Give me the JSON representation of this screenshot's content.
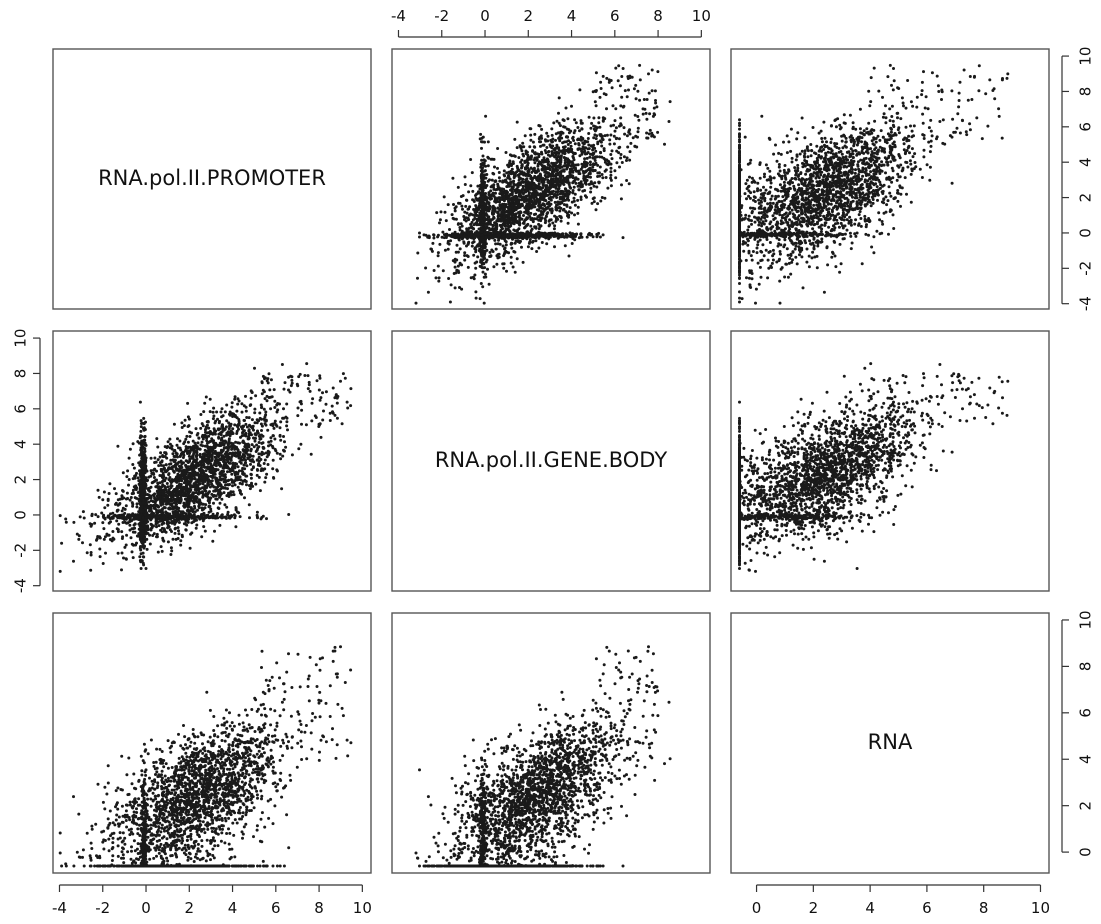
{
  "chart_data": {
    "type": "scatter",
    "matrix": true,
    "variables": [
      "RNA.pol.II.PROMOTER",
      "RNA.pol.II.GENE.BODY",
      "RNA"
    ],
    "axis_ticks": {
      "RNA.pol.II.PROMOTER": [
        -4,
        -2,
        0,
        2,
        4,
        6,
        8,
        10
      ],
      "RNA.pol.II.GENE.BODY": [
        -4,
        -2,
        0,
        2,
        4,
        6,
        8,
        10
      ],
      "RNA": [
        0,
        2,
        4,
        6,
        8,
        10
      ]
    },
    "axis_ranges": {
      "RNA.pol.II.PROMOTER": [
        -4.3,
        10.4
      ],
      "RNA.pol.II.GENE.BODY": [
        -4.3,
        10.4
      ],
      "RNA": [
        -0.9,
        10.3
      ]
    },
    "point_color": "#1a1a1a",
    "frame_color": "#555555",
    "grid": false,
    "n_points_approx": 3000,
    "notes": "pairs() scatterplot matrix; dense cloud around PROMOTER≈GENE.BODY≈2–3; many genes with RNA floor ≈ -0.6 and pol II ≈ 0 lines"
  }
}
